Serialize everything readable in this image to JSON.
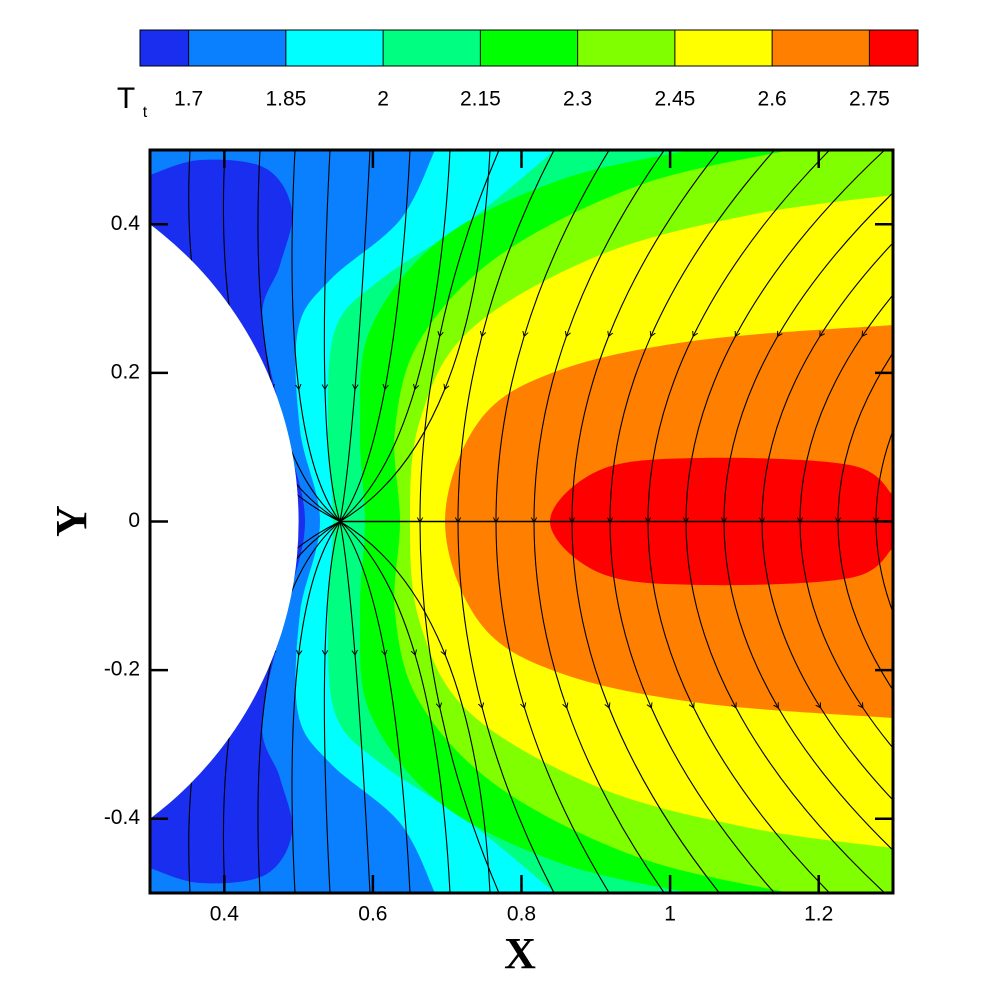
{
  "chart_data": {
    "type": "contour",
    "xlabel": "X",
    "ylabel": "Y",
    "xlim": [
      0.3,
      1.3
    ],
    "ylim": [
      -0.5,
      0.5
    ],
    "xticks": [
      0.4,
      0.6,
      0.8,
      1,
      1.2
    ],
    "yticks": [
      -0.4,
      -0.2,
      0,
      0.2,
      0.4
    ],
    "colorbar": {
      "title": "T",
      "title_subscript": "t",
      "levels": [
        1.7,
        1.85,
        2,
        2.15,
        2.3,
        2.45,
        2.6,
        2.75
      ],
      "colors": [
        "#1a2ef0",
        "#0a80ff",
        "#00ffff",
        "#00ff80",
        "#00ff00",
        "#80ff00",
        "#ffff00",
        "#ff8000",
        "#ff0000"
      ]
    }
  }
}
